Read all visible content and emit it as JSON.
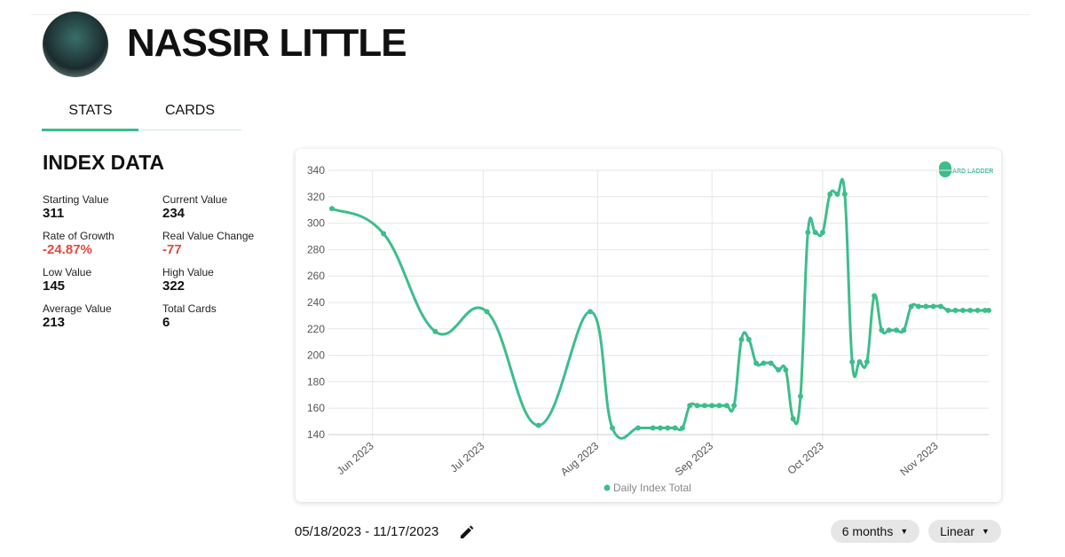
{
  "header": {
    "name": "NASSIR LITTLE"
  },
  "tabs": [
    "STATS",
    "CARDS"
  ],
  "section_title": "INDEX DATA",
  "stats": [
    {
      "label": "Starting Value",
      "value": "311"
    },
    {
      "label": "Current Value",
      "value": "234"
    },
    {
      "label": "Rate of Growth",
      "value": "-24.87%"
    },
    {
      "label": "Real Value Change",
      "value": "-77"
    },
    {
      "label": "Low Value",
      "value": "145"
    },
    {
      "label": "High Value",
      "value": "322"
    },
    {
      "label": "Average Value",
      "value": "213"
    },
    {
      "label": "Total Cards",
      "value": "6"
    }
  ],
  "logo": "CARD LADDER",
  "chart_data": {
    "type": "line",
    "x": [
      "2023-05-21",
      "2023-06-04",
      "2023-06-18",
      "2023-07-02",
      "2023-07-16",
      "2023-07-30",
      "2023-08-05",
      "2023-08-12",
      "2023-08-16",
      "2023-08-18",
      "2023-08-20",
      "2023-08-22",
      "2023-08-24",
      "2023-08-26",
      "2023-08-28",
      "2023-08-30",
      "2023-09-01",
      "2023-09-03",
      "2023-09-05",
      "2023-09-07",
      "2023-09-09",
      "2023-09-11",
      "2023-09-13",
      "2023-09-15",
      "2023-09-17",
      "2023-09-19",
      "2023-09-21",
      "2023-09-23",
      "2023-09-25",
      "2023-09-27",
      "2023-09-29",
      "2023-10-01",
      "2023-10-03",
      "2023-10-05",
      "2023-10-07",
      "2023-10-09",
      "2023-10-11",
      "2023-10-13",
      "2023-10-15",
      "2023-10-17",
      "2023-10-19",
      "2023-10-21",
      "2023-10-23",
      "2023-10-25",
      "2023-10-27",
      "2023-10-29",
      "2023-10-31",
      "2023-11-02",
      "2023-11-04",
      "2023-11-06",
      "2023-11-08",
      "2023-11-10",
      "2023-11-12",
      "2023-11-14",
      "2023-11-15"
    ],
    "series": [
      {
        "name": "Daily Index Total",
        "color": "#3dbd8c",
        "values": [
          311,
          292,
          218,
          233,
          147,
          233,
          145,
          145,
          145,
          145,
          145,
          145,
          145,
          162,
          162,
          162,
          162,
          162,
          162,
          162,
          212,
          212,
          194,
          194,
          194,
          189,
          189,
          152,
          169,
          293,
          293,
          293,
          322,
          322,
          322,
          195,
          195,
          195,
          245,
          219,
          219,
          219,
          219,
          237,
          237,
          237,
          237,
          237,
          234,
          234,
          234,
          234,
          234,
          234,
          234
        ]
      }
    ],
    "xlim": [
      "2023-05-21",
      "2023-11-15"
    ],
    "xticks": [
      {
        "value": "2023-06-01",
        "label": "Jun 2023"
      },
      {
        "value": "2023-07-01",
        "label": "Jul 2023"
      },
      {
        "value": "2023-08-01",
        "label": "Aug 2023"
      },
      {
        "value": "2023-09-01",
        "label": "Sep 2023"
      },
      {
        "value": "2023-10-01",
        "label": "Oct 2023"
      },
      {
        "value": "2023-11-01",
        "label": "Nov 2023"
      }
    ],
    "ylim": [
      140,
      340
    ],
    "yticks": [
      140,
      160,
      180,
      200,
      220,
      240,
      260,
      280,
      300,
      320,
      340
    ],
    "grid": true
  },
  "footer": {
    "date_range": "05/18/2023 - 11/17/2023",
    "buttons": [
      "6 months",
      "Linear"
    ]
  }
}
